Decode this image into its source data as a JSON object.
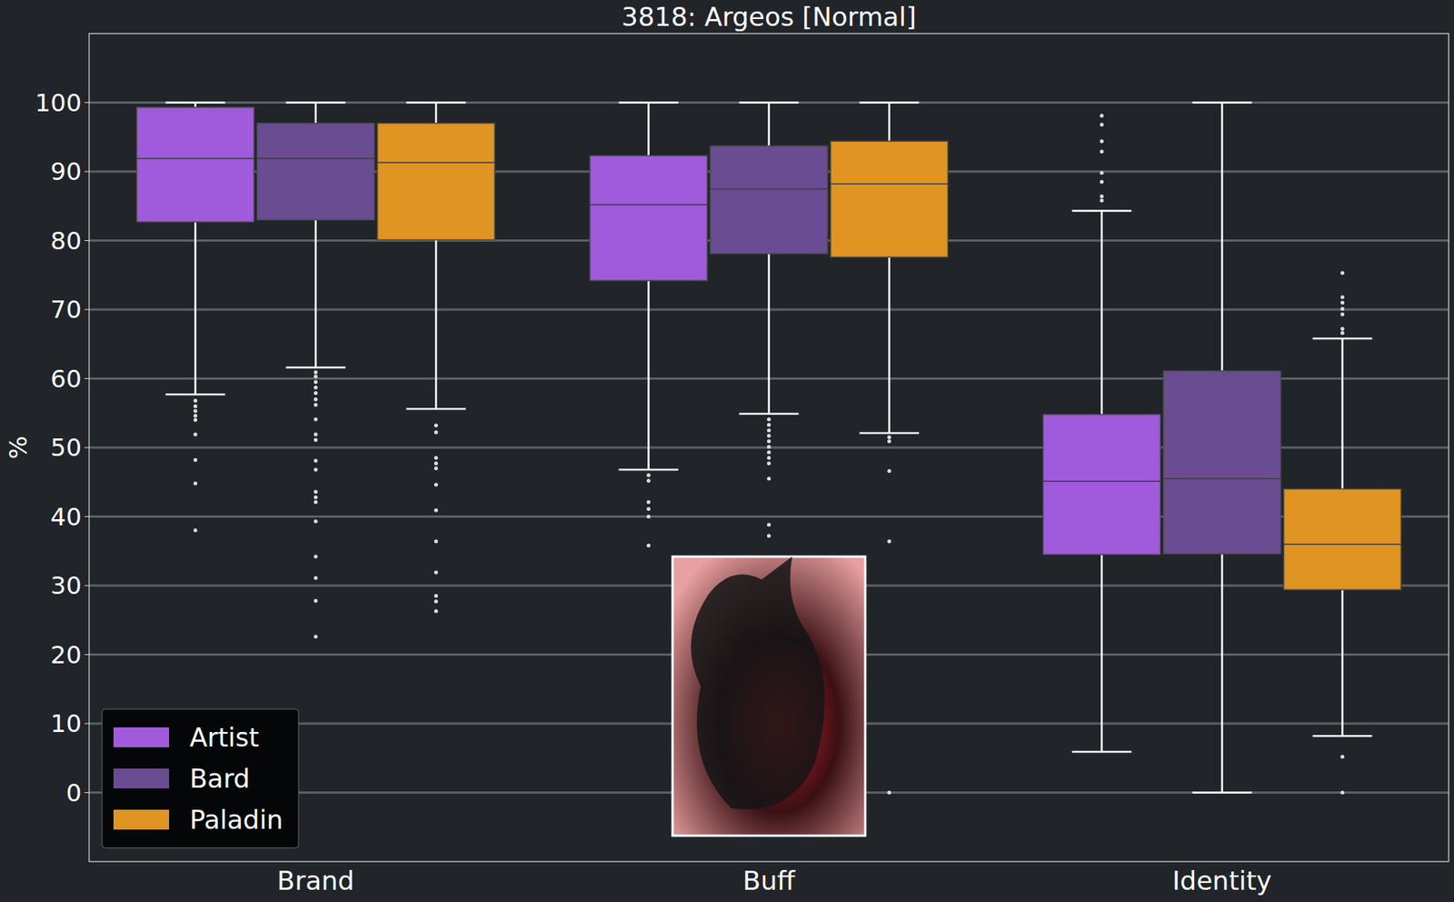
{
  "chart_data": {
    "type": "box",
    "title": "3818: Argeos [Normal]",
    "y_label": "%",
    "categories": [
      "Brand",
      "Buff",
      "Identity"
    ],
    "ylim": [
      -10,
      110
    ],
    "yticks": [
      0,
      10,
      20,
      30,
      40,
      50,
      60,
      70,
      80,
      90,
      100
    ],
    "grid": true,
    "legend": "lower left",
    "series": [
      {
        "name": "Artist",
        "color": "#9f5bdb",
        "values": [
          {
            "whislo": 57.7,
            "q1": 82.7,
            "med": 91.9,
            "q3": 99.3,
            "whishi": 100,
            "fliers": [
              56.8,
              56,
              55.3,
              54.6,
              54,
              51.9,
              48.2,
              44.8,
              38
            ]
          },
          {
            "whislo": 46.8,
            "q1": 74.2,
            "med": 85.2,
            "q3": 92.3,
            "whishi": 100,
            "fliers": [
              46,
              45.2,
              42.1,
              41.1,
              40,
              35.8
            ]
          },
          {
            "whislo": 5.9,
            "q1": 34.5,
            "med": 45.1,
            "q3": 54.8,
            "whishi": 84.3,
            "fliers": [
              98.1,
              96.8,
              94.4,
              92.9,
              89.8,
              88.5,
              86.4,
              85.8
            ]
          }
        ]
      },
      {
        "name": "Bard",
        "color": "#6a4c93",
        "values": [
          {
            "whislo": 61.6,
            "q1": 83,
            "med": 91.9,
            "q3": 97,
            "whishi": 100,
            "fliers": [
              60.9,
              60.3,
              59.5,
              58.7,
              57.9,
              57,
              56.2,
              54.1,
              51.9,
              51.1,
              48.1,
              46.8,
              43.6,
              42.8,
              42.1,
              39.3,
              34.2,
              31.1,
              27.8,
              22.6
            ]
          },
          {
            "whislo": 54.9,
            "q1": 78.1,
            "med": 87.5,
            "q3": 93.7,
            "whishi": 100,
            "fliers": [
              54.1,
              53.3,
              52.5,
              51.7,
              50.9,
              50.1,
              49.3,
              48.5,
              47.7,
              45.5,
              38.8,
              37.2
            ]
          },
          {
            "whislo": 0,
            "q1": 34.6,
            "med": 45.5,
            "q3": 61.1,
            "whishi": 100,
            "fliers": []
          }
        ]
      },
      {
        "name": "Paladin",
        "color": "#e09422",
        "values": [
          {
            "whislo": 55.6,
            "q1": 80.1,
            "med": 91.3,
            "q3": 97,
            "whishi": 100,
            "fliers": [
              53.2,
              52.2,
              48.5,
              47.7,
              47,
              44.6,
              40.9,
              36.4,
              31.9,
              28.5,
              27.7,
              26.3
            ]
          },
          {
            "whislo": 52.1,
            "q1": 77.6,
            "med": 88.2,
            "q3": 94.4,
            "whishi": 100,
            "fliers": [
              51.5,
              50.9,
              46.6,
              36.4,
              0
            ]
          },
          {
            "whislo": 8.2,
            "q1": 29.4,
            "med": 36,
            "q3": 44,
            "whishi": 65.8,
            "fliers": [
              75.3,
              71.8,
              71,
              70.1,
              69.3,
              67.2,
              66.6,
              5.2,
              0
            ]
          }
        ]
      }
    ]
  }
}
